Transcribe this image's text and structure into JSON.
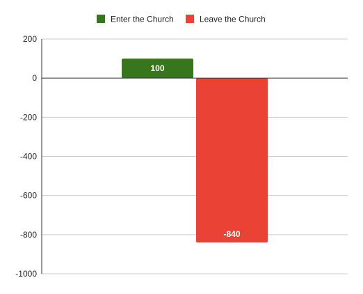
{
  "chart_data": {
    "type": "bar",
    "categories": [
      ""
    ],
    "series": [
      {
        "name": "Enter the Church",
        "values": [
          100
        ],
        "color": "#38761d"
      },
      {
        "name": "Leave the Church",
        "values": [
          -840
        ],
        "color": "#ea4335"
      }
    ],
    "data_labels": [
      "100",
      "-840"
    ],
    "title": "",
    "xlabel": "",
    "ylabel": "",
    "ylim": [
      -1000,
      200
    ],
    "yticks": [
      200,
      0,
      -200,
      -400,
      -600,
      -800,
      -1000
    ],
    "ytick_labels": [
      "200",
      "0",
      "-200",
      "-400",
      "-600",
      "-800",
      "-1000"
    ],
    "grid": true,
    "legend_position": "top-center",
    "gridline_color": "#cccccc",
    "zero_line_color": "#333333"
  }
}
